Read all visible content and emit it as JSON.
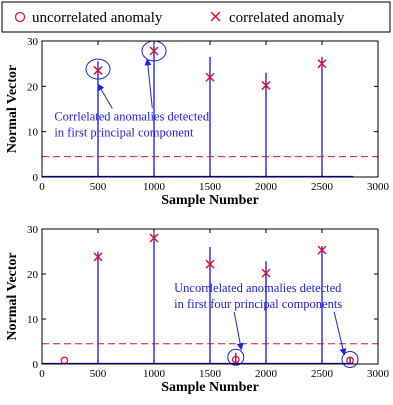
{
  "legend": {
    "items": [
      {
        "label": "uncorrelated anomaly",
        "marker": "circle",
        "color": "#e8102a"
      },
      {
        "label": "correlated anomaly",
        "marker": "x",
        "color": "#e8102a"
      }
    ]
  },
  "colors": {
    "signal": "#0000ff",
    "threshold": "#e8102a",
    "marker": "#e8102a",
    "annotation": "#2222dd",
    "axis": "#000000"
  },
  "chart_data": [
    {
      "type": "line",
      "xlabel": "Sample Number",
      "ylabel": "Normal Vector",
      "xlim": [
        0,
        3000
      ],
      "ylim": [
        0,
        30
      ],
      "xticks": [
        "0",
        "500",
        "1000",
        "1500",
        "2000",
        "2500",
        "3000"
      ],
      "yticks": [
        "0",
        "10",
        "20",
        "30"
      ],
      "signal_end": 2780,
      "threshold": 4.5,
      "spikes": [
        {
          "x": 500,
          "y": 25.5
        },
        {
          "x": 1000,
          "y": 29.0
        },
        {
          "x": 1500,
          "y": 26.5
        },
        {
          "x": 2000,
          "y": 23.0
        },
        {
          "x": 2500,
          "y": 26.5
        }
      ],
      "correlated_anomalies": [
        {
          "x": 500,
          "y": 23.5
        },
        {
          "x": 1000,
          "y": 27.8
        },
        {
          "x": 1500,
          "y": 22.0
        },
        {
          "x": 2000,
          "y": 20.2
        },
        {
          "x": 2500,
          "y": 25.0
        }
      ],
      "uncorrelated_anomalies": [],
      "highlight_ellipses": [
        {
          "x": 500,
          "y": 23.8
        },
        {
          "x": 1000,
          "y": 27.8
        }
      ],
      "annotation": {
        "lines": [
          "Corrlelated anomalies detected",
          "in first principal component"
        ],
        "anchor": {
          "x": 110,
          "y": 12.5
        },
        "arrow_targets": [
          {
            "x": 500,
            "y": 20.5
          },
          {
            "x": 940,
            "y": 26.0
          }
        ]
      }
    },
    {
      "type": "line",
      "xlabel": "Sample Number",
      "ylabel": "Normal Vector",
      "xlim": [
        0,
        3000
      ],
      "ylim": [
        0,
        30
      ],
      "xticks": [
        "0",
        "500",
        "1000",
        "1500",
        "2000",
        "2500",
        "3000"
      ],
      "yticks": [
        "0",
        "10",
        "20",
        "30"
      ],
      "signal_end": 2780,
      "threshold": 4.5,
      "spikes": [
        {
          "x": 500,
          "y": 25.0
        },
        {
          "x": 1000,
          "y": 29.0
        },
        {
          "x": 1500,
          "y": 26.0
        },
        {
          "x": 2000,
          "y": 22.8
        },
        {
          "x": 2500,
          "y": 26.2
        },
        {
          "x": 1730,
          "y": 2.5
        },
        {
          "x": 2750,
          "y": 1.5
        }
      ],
      "correlated_anomalies": [
        {
          "x": 500,
          "y": 23.8
        },
        {
          "x": 1000,
          "y": 28.0
        },
        {
          "x": 1500,
          "y": 22.2
        },
        {
          "x": 2000,
          "y": 20.2
        },
        {
          "x": 2500,
          "y": 25.3
        }
      ],
      "uncorrelated_anomalies": [
        {
          "x": 200,
          "y": 0.8
        },
        {
          "x": 1730,
          "y": 1.0
        },
        {
          "x": 2750,
          "y": 0.8
        }
      ],
      "highlight_ellipses": [
        {
          "x": 1730,
          "y": 1.5
        },
        {
          "x": 2750,
          "y": 1.0
        }
      ],
      "annotation": {
        "lines": [
          "Uncorrlelated anomalies detected",
          "in first four principal components"
        ],
        "anchor": {
          "x": 1180,
          "y": 16.0
        },
        "arrow_targets": [
          {
            "x": 1780,
            "y": 3.2
          },
          {
            "x": 2700,
            "y": 2.0
          }
        ]
      }
    }
  ]
}
